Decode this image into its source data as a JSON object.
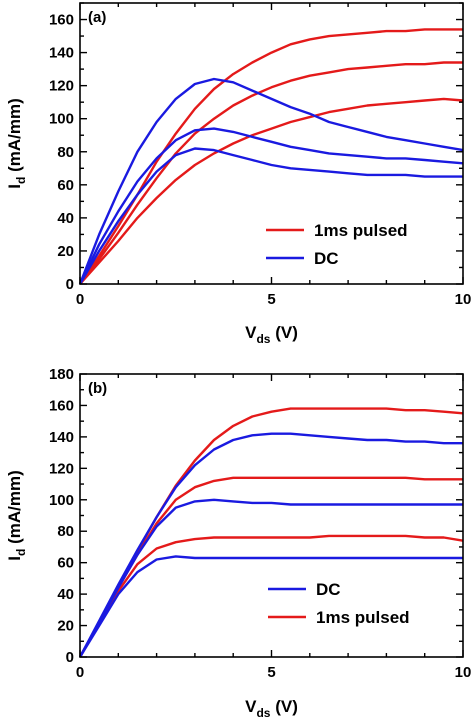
{
  "chart_data": [
    {
      "type": "line",
      "panel_label": "(a)",
      "xlabel": {
        "main": "V",
        "sub": "ds",
        "unit": " (V)"
      },
      "ylabel": {
        "main": "I",
        "sub": "d",
        "unit": " (mA/mm)"
      },
      "xlim": [
        0,
        10
      ],
      "ylim": [
        0,
        170
      ],
      "xticks": [
        0,
        5,
        10
      ],
      "yticks": [
        0,
        20,
        40,
        60,
        80,
        100,
        120,
        140,
        160
      ],
      "grid": false,
      "legend_position": "bottom-right",
      "legend": [
        {
          "name": "1ms pulsed",
          "color": "#e41a1a"
        },
        {
          "name": "DC",
          "color": "#1a1ae0"
        }
      ],
      "series": [
        {
          "group": "1ms pulsed",
          "color": "#e41a1a",
          "x": [
            0,
            0.5,
            1,
            1.5,
            2,
            2.5,
            3,
            3.5,
            4,
            4.5,
            5,
            5.5,
            6,
            6.5,
            7,
            7.5,
            8,
            8.5,
            9,
            9.5,
            10
          ],
          "y": [
            0,
            17,
            35,
            54,
            74,
            91,
            106,
            118,
            127,
            134,
            140,
            145,
            148,
            150,
            151,
            152,
            153,
            153,
            154,
            154,
            154
          ]
        },
        {
          "group": "1ms pulsed",
          "color": "#e41a1a",
          "x": [
            0,
            0.5,
            1,
            1.5,
            2,
            2.5,
            3,
            3.5,
            4,
            4.5,
            5,
            5.5,
            6,
            6.5,
            7,
            7.5,
            8,
            8.5,
            9,
            9.5,
            10
          ],
          "y": [
            0,
            15,
            31,
            48,
            64,
            79,
            91,
            100,
            108,
            114,
            119,
            123,
            126,
            128,
            130,
            131,
            132,
            133,
            133,
            134,
            134
          ]
        },
        {
          "group": "1ms pulsed",
          "color": "#e41a1a",
          "x": [
            0,
            0.5,
            1,
            1.5,
            2,
            2.5,
            3,
            3.5,
            4,
            4.5,
            5,
            5.5,
            6,
            6.5,
            7,
            7.5,
            8,
            8.5,
            9,
            9.5,
            10
          ],
          "y": [
            0,
            13,
            26,
            40,
            52,
            63,
            72,
            79,
            85,
            90,
            94,
            98,
            101,
            104,
            106,
            108,
            109,
            110,
            111,
            112,
            111
          ]
        },
        {
          "group": "DC",
          "color": "#1a1ae0",
          "x": [
            0,
            0.5,
            1,
            1.5,
            2,
            2.5,
            3,
            3.5,
            4,
            4.5,
            5,
            5.5,
            6,
            6.5,
            7,
            7.5,
            8,
            8.5,
            9,
            9.5,
            10
          ],
          "y": [
            0,
            30,
            56,
            80,
            98,
            112,
            121,
            124,
            122,
            117,
            112,
            107,
            103,
            98,
            95,
            92,
            89,
            87,
            85,
            83,
            81
          ]
        },
        {
          "group": "DC",
          "color": "#1a1ae0",
          "x": [
            0,
            0.5,
            1,
            1.5,
            2,
            2.5,
            3,
            3.5,
            4,
            4.5,
            5,
            5.5,
            6,
            6.5,
            7,
            7.5,
            8,
            8.5,
            9,
            9.5,
            10
          ],
          "y": [
            0,
            24,
            44,
            62,
            76,
            87,
            93,
            94,
            92,
            89,
            86,
            83,
            81,
            79,
            78,
            77,
            76,
            76,
            75,
            74,
            73
          ]
        },
        {
          "group": "DC",
          "color": "#1a1ae0",
          "x": [
            0,
            0.5,
            1,
            1.5,
            2,
            2.5,
            3,
            3.5,
            4,
            4.5,
            5,
            5.5,
            6,
            6.5,
            7,
            7.5,
            8,
            8.5,
            9,
            9.5,
            10
          ],
          "y": [
            0,
            20,
            38,
            54,
            68,
            78,
            82,
            81,
            78,
            75,
            72,
            70,
            69,
            68,
            67,
            66,
            66,
            66,
            65,
            65,
            65
          ]
        }
      ]
    },
    {
      "type": "line",
      "panel_label": "(b)",
      "xlabel": {
        "main": "V",
        "sub": "ds",
        "unit": " (V)"
      },
      "ylabel": {
        "main": "I",
        "sub": "d",
        "unit": " (mA/mm)"
      },
      "xlim": [
        0,
        10
      ],
      "ylim": [
        0,
        180
      ],
      "xticks": [
        0,
        5,
        10
      ],
      "yticks": [
        0,
        20,
        40,
        60,
        80,
        100,
        120,
        140,
        160,
        180
      ],
      "grid": false,
      "legend_position": "bottom-right",
      "legend": [
        {
          "name": "DC",
          "color": "#1a1ae0"
        },
        {
          "name": "1ms pulsed",
          "color": "#e41a1a"
        }
      ],
      "series": [
        {
          "group": "1ms pulsed",
          "color": "#e41a1a",
          "x": [
            0,
            0.5,
            1,
            1.5,
            2,
            2.5,
            3,
            3.5,
            4,
            4.5,
            5,
            5.5,
            6,
            6.5,
            7,
            7.5,
            8,
            8.5,
            9,
            9.5,
            10
          ],
          "y": [
            0,
            22,
            45,
            67,
            89,
            109,
            125,
            138,
            147,
            153,
            156,
            158,
            158,
            158,
            158,
            158,
            158,
            157,
            157,
            156,
            155
          ]
        },
        {
          "group": "1ms pulsed",
          "color": "#e41a1a",
          "x": [
            0,
            0.5,
            1,
            1.5,
            2,
            2.5,
            3,
            3.5,
            4,
            4.5,
            5,
            5.5,
            6,
            6.5,
            7,
            7.5,
            8,
            8.5,
            9,
            9.5,
            10
          ],
          "y": [
            0,
            22,
            44,
            65,
            85,
            100,
            108,
            112,
            114,
            114,
            114,
            114,
            114,
            114,
            114,
            114,
            114,
            114,
            113,
            113,
            113
          ]
        },
        {
          "group": "1ms pulsed",
          "color": "#e41a1a",
          "x": [
            0,
            0.5,
            1,
            1.5,
            2,
            2.5,
            3,
            3.5,
            4,
            4.5,
            5,
            5.5,
            6,
            6.5,
            7,
            7.5,
            8,
            8.5,
            9,
            9.5,
            10
          ],
          "y": [
            0,
            21,
            42,
            59,
            69,
            73,
            75,
            76,
            76,
            76,
            76,
            76,
            76,
            77,
            77,
            77,
            77,
            77,
            76,
            76,
            74
          ]
        },
        {
          "group": "DC",
          "color": "#1a1ae0",
          "x": [
            0,
            0.5,
            1,
            1.5,
            2,
            2.5,
            3,
            3.5,
            4,
            4.5,
            5,
            5.5,
            6,
            6.5,
            7,
            7.5,
            8,
            8.5,
            9,
            9.5,
            10
          ],
          "y": [
            0,
            23,
            46,
            68,
            89,
            108,
            122,
            132,
            138,
            141,
            142,
            142,
            141,
            140,
            139,
            138,
            138,
            137,
            137,
            136,
            136
          ]
        },
        {
          "group": "DC",
          "color": "#1a1ae0",
          "x": [
            0,
            0.5,
            1,
            1.5,
            2,
            2.5,
            3,
            3.5,
            4,
            4.5,
            5,
            5.5,
            6,
            6.5,
            7,
            7.5,
            8,
            8.5,
            9,
            9.5,
            10
          ],
          "y": [
            0,
            22,
            44,
            65,
            83,
            95,
            99,
            100,
            99,
            98,
            98,
            97,
            97,
            97,
            97,
            97,
            97,
            97,
            97,
            97,
            97
          ]
        },
        {
          "group": "DC",
          "color": "#1a1ae0",
          "x": [
            0,
            0.5,
            1,
            1.5,
            2,
            2.5,
            3,
            3.5,
            4,
            4.5,
            5,
            5.5,
            6,
            6.5,
            7,
            7.5,
            8,
            8.5,
            9,
            9.5,
            10
          ],
          "y": [
            0,
            20,
            40,
            54,
            62,
            64,
            63,
            63,
            63,
            63,
            63,
            63,
            63,
            63,
            63,
            63,
            63,
            63,
            63,
            63,
            63
          ]
        }
      ]
    }
  ]
}
